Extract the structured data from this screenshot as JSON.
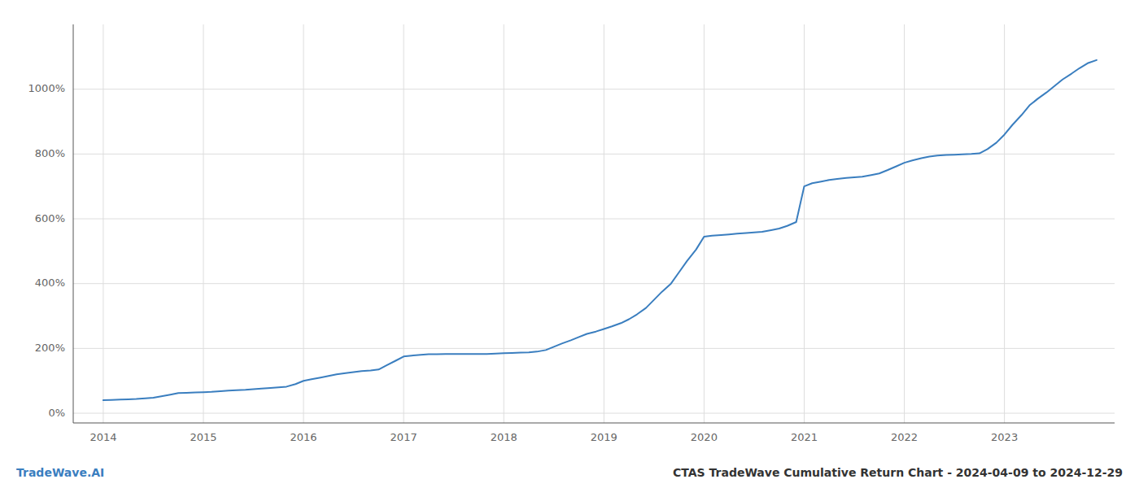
{
  "chart_data": {
    "type": "line",
    "title": "CTAS TradeWave Cumulative Return Chart - 2024-04-09 to 2024-12-29",
    "annotations": [
      "TradeWave.AI"
    ],
    "color": "#3a7ebf",
    "grid": true,
    "x": [
      2014.0,
      2014.08,
      2014.17,
      2014.25,
      2014.33,
      2014.42,
      2014.5,
      2014.58,
      2014.67,
      2014.75,
      2014.83,
      2014.92,
      2015.0,
      2015.08,
      2015.17,
      2015.25,
      2015.33,
      2015.42,
      2015.5,
      2015.58,
      2015.67,
      2015.75,
      2015.83,
      2015.92,
      2016.0,
      2016.08,
      2016.17,
      2016.25,
      2016.33,
      2016.42,
      2016.5,
      2016.58,
      2016.67,
      2016.75,
      2016.83,
      2016.92,
      2017.0,
      2017.08,
      2017.17,
      2017.25,
      2017.33,
      2017.42,
      2017.5,
      2017.58,
      2017.67,
      2017.75,
      2017.83,
      2017.92,
      2018.0,
      2018.08,
      2018.17,
      2018.25,
      2018.33,
      2018.42,
      2018.5,
      2018.58,
      2018.67,
      2018.75,
      2018.83,
      2018.92,
      2019.0,
      2019.08,
      2019.17,
      2019.25,
      2019.33,
      2019.42,
      2019.5,
      2019.58,
      2019.67,
      2019.75,
      2019.83,
      2019.92,
      2020.0,
      2020.08,
      2020.17,
      2020.25,
      2020.33,
      2020.42,
      2020.5,
      2020.58,
      2020.67,
      2020.75,
      2020.83,
      2020.92,
      2021.0,
      2021.08,
      2021.17,
      2021.25,
      2021.33,
      2021.42,
      2021.5,
      2021.58,
      2021.67,
      2021.75,
      2021.83,
      2021.92,
      2022.0,
      2022.08,
      2022.17,
      2022.25,
      2022.33,
      2022.42,
      2022.5,
      2022.58,
      2022.67,
      2022.75,
      2022.83,
      2022.92,
      2023.0,
      2023.08,
      2023.17,
      2023.25,
      2023.33,
      2023.42,
      2023.5,
      2023.58,
      2023.67,
      2023.75,
      2023.83,
      2023.92
    ],
    "values": [
      40,
      41,
      42,
      43,
      44,
      46,
      48,
      52,
      57,
      62,
      63,
      64,
      65,
      66,
      68,
      70,
      71,
      72,
      74,
      76,
      78,
      80,
      82,
      90,
      100,
      105,
      110,
      115,
      120,
      124,
      127,
      130,
      132,
      135,
      148,
      162,
      175,
      178,
      180,
      182,
      182,
      183,
      183,
      183,
      183,
      183,
      183,
      184,
      185,
      186,
      187,
      188,
      190,
      195,
      205,
      215,
      225,
      235,
      245,
      252,
      260,
      268,
      278,
      290,
      305,
      325,
      350,
      375,
      400,
      435,
      470,
      505,
      545,
      548,
      550,
      552,
      554,
      556,
      558,
      560,
      565,
      570,
      578,
      590,
      700,
      710,
      715,
      720,
      723,
      726,
      728,
      730,
      735,
      740,
      750,
      762,
      773,
      780,
      787,
      792,
      795,
      797,
      798,
      799,
      800,
      802,
      815,
      835,
      860,
      890,
      920,
      950,
      970,
      990,
      1010,
      1030,
      1048,
      1065,
      1080,
      1090
    ],
    "xlim": [
      2013.7,
      2024.1
    ],
    "xticks": [
      2014,
      2015,
      2016,
      2017,
      2018,
      2019,
      2020,
      2021,
      2022,
      2023
    ],
    "ylim": [
      -30,
      1200
    ],
    "yticks": [
      {
        "value": 0,
        "label": "0%"
      },
      {
        "value": 200,
        "label": "200%"
      },
      {
        "value": 400,
        "label": "400%"
      },
      {
        "value": 600,
        "label": "600%"
      },
      {
        "value": 800,
        "label": "800%"
      },
      {
        "value": 1000,
        "label": "1000%"
      }
    ]
  }
}
